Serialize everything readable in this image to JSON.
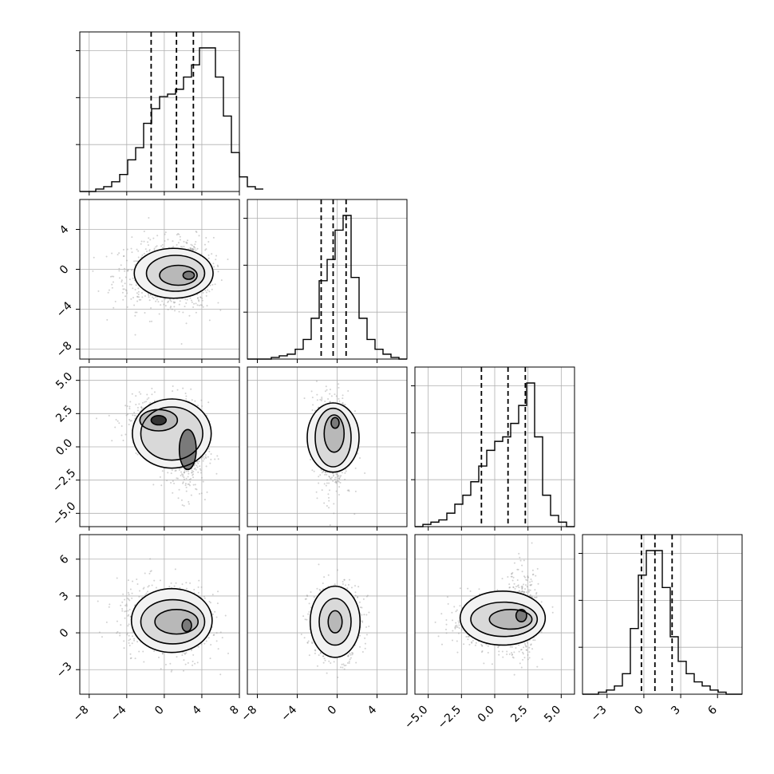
{
  "chart_data": {
    "type": "corner",
    "grid": true,
    "parameters": [
      {
        "range": [
          -9,
          8
        ],
        "ticks": [
          -8,
          -4,
          0,
          4,
          8
        ],
        "tick_labels": [
          "−8",
          "−4",
          "0",
          "4",
          "8"
        ],
        "quantiles": [
          -1.4,
          1.3,
          3.1
        ],
        "ylim_ticks": [
          4,
          8,
          -8
        ],
        "ylabels_left": [
          "4",
          "0",
          "−4",
          "−8"
        ]
      },
      {
        "range": [
          -9,
          7
        ],
        "ticks": [
          -8,
          -4,
          0,
          4
        ],
        "tick_labels": [
          "−8",
          "−4",
          "0",
          "4"
        ],
        "quantiles": [
          -1.6,
          -0.4,
          0.9
        ]
      },
      {
        "range": [
          -6,
          6
        ],
        "ticks": [
          -5,
          -2.5,
          0,
          2.5,
          5
        ],
        "tick_labels": [
          "−5.0",
          "−2.5",
          "0.0",
          "2.5",
          "5.0"
        ],
        "quantiles": [
          -1.0,
          1.0,
          2.3
        ]
      },
      {
        "range": [
          -5,
          8
        ],
        "ticks": [
          -3,
          0,
          3,
          6
        ],
        "tick_labels": [
          "−3",
          "0",
          "3",
          "6"
        ],
        "quantiles": [
          -0.2,
          0.9,
          2.3
        ]
      }
    ],
    "histograms": [
      {
        "param": 0,
        "bin_start": -9,
        "bin_width": 0.85,
        "counts": [
          0,
          0,
          1,
          2,
          4,
          7,
          13,
          18,
          28,
          34,
          39,
          40,
          42,
          47,
          52,
          59,
          59,
          47,
          31,
          16,
          6,
          2,
          1
        ]
      },
      {
        "param": 1,
        "bin_start": -9,
        "bin_width": 0.8,
        "counts": [
          0,
          0,
          0,
          1,
          2,
          3,
          6,
          12,
          25,
          48,
          61,
          79,
          88,
          50,
          25,
          12,
          6,
          3,
          1,
          0
        ]
      },
      {
        "param": 2,
        "bin_start": -6,
        "bin_width": 0.6,
        "counts": [
          0,
          1,
          2,
          3,
          6,
          10,
          14,
          20,
          27,
          34,
          38,
          40,
          46,
          54,
          64,
          40,
          14,
          5,
          2,
          0
        ]
      },
      {
        "param": 3,
        "bin_start": -5,
        "bin_width": 0.65,
        "counts": [
          0,
          0,
          1,
          2,
          4,
          10,
          32,
          58,
          70,
          70,
          52,
          28,
          16,
          10,
          6,
          4,
          2,
          1,
          0,
          0
        ]
      }
    ],
    "panels": [
      {
        "row": 1,
        "col": 0,
        "clusters": [
          {
            "cx": -0.6,
            "cy": -0.6,
            "sx": 2.2,
            "sy": 1.6,
            "n": 240
          },
          {
            "cx": 2.6,
            "cy": -0.4,
            "sx": 1.2,
            "sy": 1.6,
            "n": 200
          }
        ],
        "contours": [
          {
            "cx": 1.0,
            "cy": -0.4,
            "rx": 4.2,
            "ry": 2.5
          },
          {
            "cx": 1.2,
            "cy": -0.4,
            "rx": 3.1,
            "ry": 1.8
          },
          {
            "cx": 1.5,
            "cy": -0.6,
            "rx": 2.0,
            "ry": 1.0
          },
          {
            "cx": 2.6,
            "cy": -0.6,
            "rx": 0.6,
            "ry": 0.4
          }
        ]
      },
      {
        "row": 2,
        "col": 0,
        "clusters": [
          {
            "cx": -0.6,
            "cy": 2.0,
            "sx": 1.6,
            "sy": 0.8,
            "n": 220
          },
          {
            "cx": 2.5,
            "cy": -0.2,
            "sx": 1.0,
            "sy": 1.6,
            "n": 200
          }
        ],
        "contours": [
          {
            "cx": 0.8,
            "cy": 1.0,
            "rx": 4.2,
            "ry": 2.6
          },
          {
            "cx": 0.8,
            "cy": 1.0,
            "rx": 3.3,
            "ry": 2.0
          },
          {
            "cx": -0.6,
            "cy": 2.0,
            "rx": 2.0,
            "ry": 0.8
          },
          {
            "cx": 2.5,
            "cy": -0.2,
            "rx": 0.9,
            "ry": 1.5
          },
          {
            "cx": -0.6,
            "cy": 2.0,
            "rx": 0.8,
            "ry": 0.35
          }
        ]
      },
      {
        "row": 2,
        "col": 1,
        "clusters": [
          {
            "cx": -0.3,
            "cy": 1.8,
            "sx": 0.8,
            "sy": 0.8,
            "n": 200
          },
          {
            "cx": -0.5,
            "cy": 0.0,
            "sx": 0.9,
            "sy": 1.8,
            "n": 200
          }
        ],
        "contours": [
          {
            "cx": -0.4,
            "cy": 0.7,
            "rx": 2.6,
            "ry": 2.6
          },
          {
            "cx": -0.4,
            "cy": 0.7,
            "rx": 1.8,
            "ry": 2.2
          },
          {
            "cx": -0.3,
            "cy": 1.0,
            "rx": 1.0,
            "ry": 1.4
          },
          {
            "cx": -0.2,
            "cy": 1.8,
            "rx": 0.4,
            "ry": 0.4
          }
        ]
      },
      {
        "row": 3,
        "col": 0,
        "clusters": [
          {
            "cx": -0.6,
            "cy": 1.3,
            "sx": 2.0,
            "sy": 1.3,
            "n": 240
          },
          {
            "cx": 2.6,
            "cy": 0.6,
            "sx": 1.2,
            "sy": 1.2,
            "n": 200
          }
        ],
        "contours": [
          {
            "cx": 0.8,
            "cy": 1.0,
            "rx": 4.3,
            "ry": 2.6
          },
          {
            "cx": 0.9,
            "cy": 0.9,
            "rx": 3.4,
            "ry": 1.8
          },
          {
            "cx": 1.3,
            "cy": 0.9,
            "rx": 2.3,
            "ry": 1.0
          },
          {
            "cx": 2.4,
            "cy": 0.6,
            "rx": 0.5,
            "ry": 0.5
          }
        ]
      },
      {
        "row": 3,
        "col": 1,
        "clusters": [
          {
            "cx": -0.2,
            "cy": 0.9,
            "sx": 1.2,
            "sy": 1.4,
            "n": 340
          }
        ],
        "contours": [
          {
            "cx": -0.2,
            "cy": 0.9,
            "rx": 2.5,
            "ry": 2.9
          },
          {
            "cx": -0.2,
            "cy": 0.9,
            "rx": 1.6,
            "ry": 1.9
          },
          {
            "cx": -0.2,
            "cy": 0.9,
            "rx": 0.7,
            "ry": 0.9
          }
        ]
      },
      {
        "row": 3,
        "col": 2,
        "clusters": [
          {
            "cx": -0.3,
            "cy": 0.8,
            "sx": 1.4,
            "sy": 0.9,
            "n": 240
          },
          {
            "cx": 2.0,
            "cy": 1.5,
            "sx": 0.6,
            "sy": 1.6,
            "n": 200
          }
        ],
        "contours": [
          {
            "cx": 0.6,
            "cy": 1.2,
            "rx": 3.2,
            "ry": 2.2
          },
          {
            "cx": 0.7,
            "cy": 1.1,
            "rx": 2.5,
            "ry": 1.4
          },
          {
            "cx": 1.2,
            "cy": 1.1,
            "rx": 1.6,
            "ry": 0.8
          },
          {
            "cx": 2.0,
            "cy": 1.4,
            "rx": 0.4,
            "ry": 0.5
          }
        ]
      }
    ]
  }
}
